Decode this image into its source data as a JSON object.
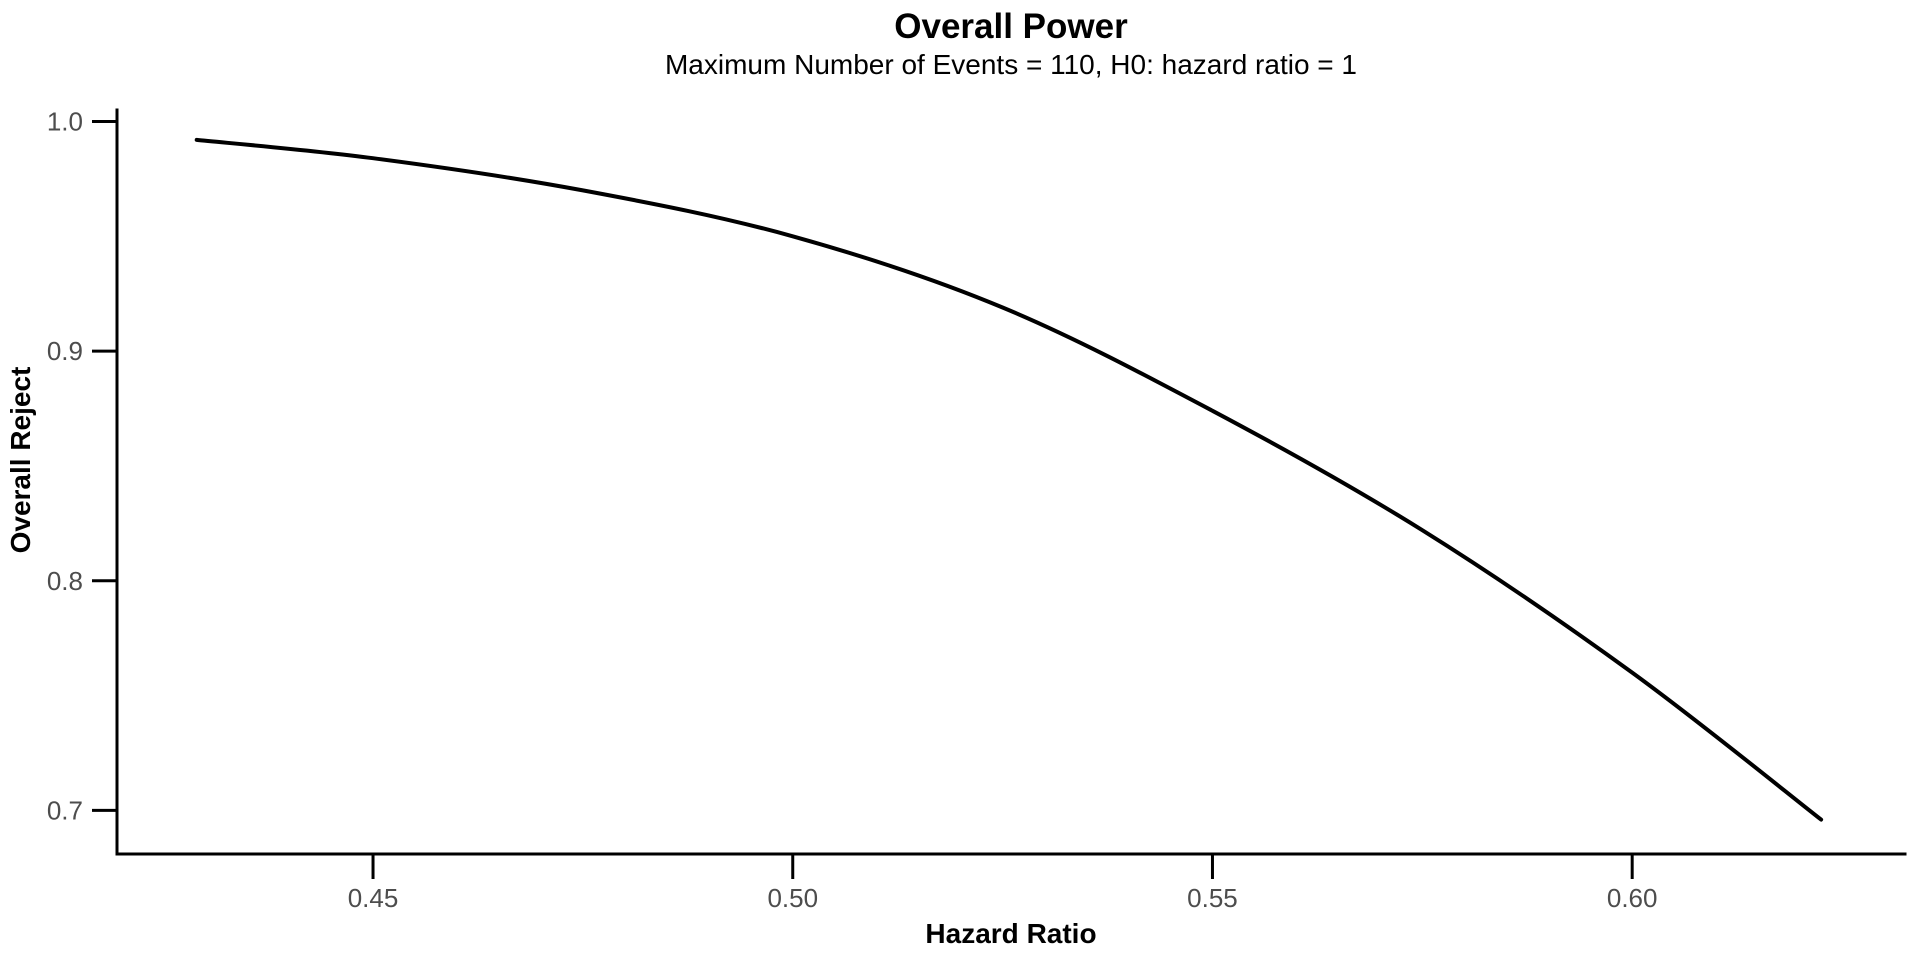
{
  "chart_data": {
    "type": "line",
    "title": "Overall Power",
    "subtitle": "Maximum Number of Events = 110, H0: hazard ratio = 1",
    "xlabel": "Hazard Ratio",
    "ylabel": "Overall Reject",
    "xlim": [
      0.4195,
      0.6325
    ],
    "ylim": [
      0.681,
      1.005
    ],
    "x_ticks": [
      {
        "value": 0.45,
        "label": "0.45"
      },
      {
        "value": 0.5,
        "label": "0.50"
      },
      {
        "value": 0.55,
        "label": "0.55"
      },
      {
        "value": 0.6,
        "label": "0.60"
      }
    ],
    "y_ticks": [
      {
        "value": 0.7,
        "label": "0.7"
      },
      {
        "value": 0.8,
        "label": "0.8"
      },
      {
        "value": 0.9,
        "label": "0.9"
      },
      {
        "value": 1.0,
        "label": "1.0"
      }
    ],
    "grid": false,
    "legend_position": "none",
    "axis_style": "L-open-box",
    "series": [
      {
        "name": "Overall Power",
        "color": "#000000",
        "x": [
          0.429,
          0.45,
          0.475,
          0.5,
          0.525,
          0.55,
          0.575,
          0.6,
          0.6225
        ],
        "y": [
          0.992,
          0.984,
          0.97,
          0.95,
          0.919,
          0.874,
          0.822,
          0.76,
          0.696
        ]
      }
    ],
    "colors": {
      "line": "#000000",
      "axis": "#000000",
      "tick_label": "#4d4d4d",
      "title_text": "#000000",
      "background": "#ffffff"
    }
  }
}
